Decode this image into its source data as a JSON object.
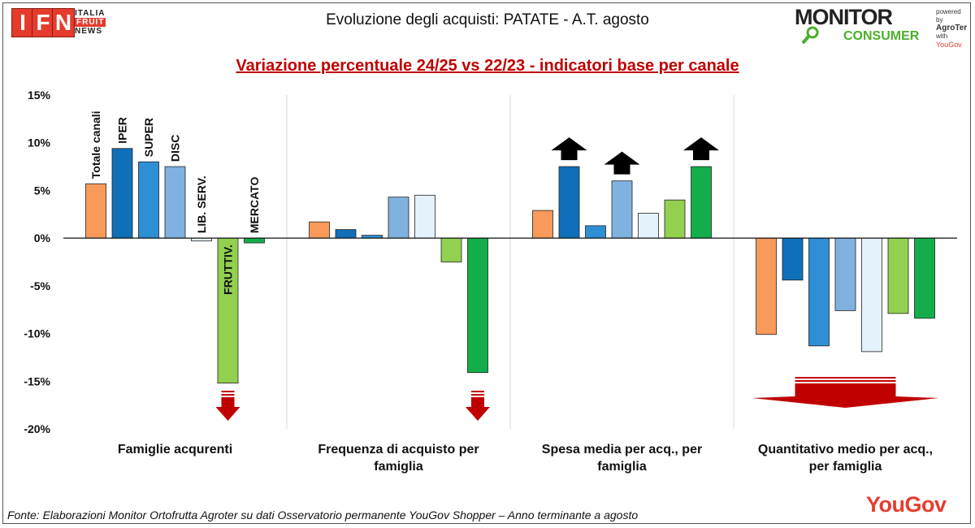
{
  "header": {
    "title": "Evoluzione degli acquisti: PATATE - A.T. agosto",
    "subtitle": "Variazione percentuale 24/25 vs 22/23 - indicatori base per canale"
  },
  "logos": {
    "ifn": {
      "letters": [
        "I",
        "F",
        "N"
      ],
      "lines": [
        "ITALIA",
        "FRUIT",
        "NEWS"
      ]
    },
    "monitor": {
      "word": "MONITOR",
      "sub": "CONSUMER",
      "powered": "powered by",
      "agroter": "AgroTer",
      "with": "with",
      "yougov": "YouGov"
    },
    "yougov": "YouGov"
  },
  "footer": {
    "source": "Fonte: Elaborazioni Monitor Ortofrutta Agroter su dati Osservatorio permanente YouGov Shopper  – Anno terminante a agosto"
  },
  "colors": {
    "Totale canali": "#f79a5a",
    "IPER": "#0f6fb8",
    "SUPER": "#2f8fd4",
    "DISC": "#7fb2e0",
    "LIB. SERV.": "#e4f2fb",
    "FRUTTIV.": "#92d050",
    "MERCATO": "#13ae4b",
    "up_arrow": "#000000",
    "down_arrow": "#c00000"
  },
  "chart_data": {
    "type": "bar",
    "title": "Variazione percentuale 24/25 vs 22/23 - indicatori base per canale",
    "xlabel": "",
    "ylabel": "",
    "ylim": [
      -20,
      15
    ],
    "yticks": [
      "15%",
      "10%",
      "5%",
      "0%",
      "-5%",
      "-10%",
      "-15%",
      "-20%"
    ],
    "ytick_values": [
      15,
      10,
      5,
      0,
      -5,
      -10,
      -15,
      -20
    ],
    "categories": [
      "Famiglie acqurenti",
      "Frequenza di acquisto per famiglia",
      "Spesa media per acq., per famiglia",
      "Quantitativo medio per acq., per famiglia"
    ],
    "category_label_lines": [
      [
        "Famiglie acqurenti"
      ],
      [
        "Frequenza di acquisto per",
        "famiglia"
      ],
      [
        "Spesa media per acq., per",
        "famiglia"
      ],
      [
        "Quantitativo medio per acq.,",
        "per famiglia"
      ]
    ],
    "series": [
      {
        "name": "Totale canali",
        "values": [
          5.7,
          1.7,
          2.9,
          -10.1
        ]
      },
      {
        "name": "IPER",
        "values": [
          9.4,
          0.9,
          7.5,
          -4.4
        ]
      },
      {
        "name": "SUPER",
        "values": [
          8.0,
          0.3,
          1.3,
          -11.3
        ]
      },
      {
        "name": "DISC",
        "values": [
          7.5,
          4.3,
          6.0,
          -7.6
        ]
      },
      {
        "name": "LIB. SERV.",
        "values": [
          -0.3,
          4.5,
          2.6,
          -11.9
        ]
      },
      {
        "name": "FRUTTIV.",
        "values": [
          -15.2,
          -2.5,
          4.0,
          -7.9
        ]
      },
      {
        "name": "MERCATO",
        "values": [
          -0.5,
          -14.1,
          7.5,
          -8.4
        ]
      }
    ],
    "series_labels_shown_in_group": 0,
    "grid": "vertical separators between groups",
    "legend": "labels on bars of first group",
    "up_arrows": [
      {
        "category": 2,
        "series": "IPER"
      },
      {
        "category": 2,
        "series": "DISC"
      },
      {
        "category": 2,
        "series": "MERCATO"
      }
    ],
    "down_arrows": [
      {
        "category": 0,
        "series": "FRUTTIV."
      },
      {
        "category": 1,
        "series": "MERCATO"
      },
      {
        "category": 3,
        "series": "all"
      }
    ]
  }
}
